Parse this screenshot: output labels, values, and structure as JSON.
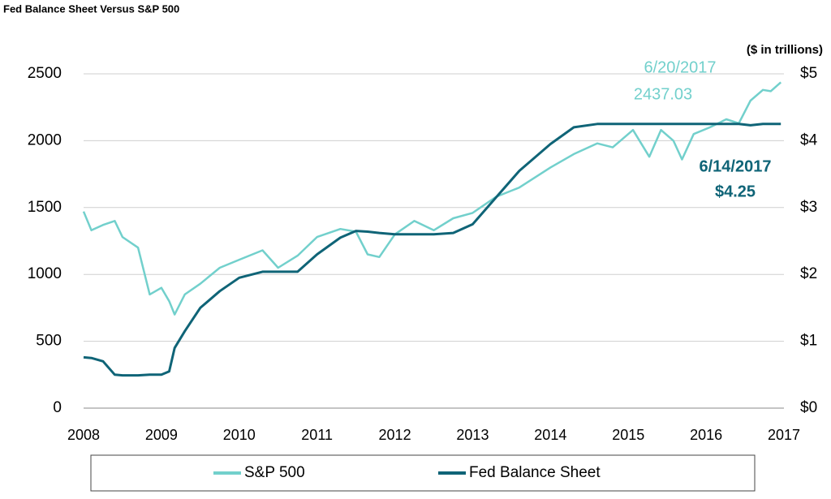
{
  "chart_data": {
    "type": "line",
    "title": "Fed Balance Sheet Versus S&P 500",
    "y2_label": "($ in trillions)",
    "x": [
      2008.0,
      2008.1,
      2008.25,
      2008.4,
      2008.5,
      2008.7,
      2008.85,
      2009.0,
      2009.1,
      2009.17,
      2009.3,
      2009.5,
      2009.75,
      2010.0,
      2010.3,
      2010.5,
      2010.75,
      2011.0,
      2011.3,
      2011.5,
      2011.65,
      2011.8,
      2012.0,
      2012.25,
      2012.5,
      2012.75,
      2013.0,
      2013.3,
      2013.6,
      2014.0,
      2014.3,
      2014.6,
      2014.8,
      2015.06,
      2015.27,
      2015.42,
      2015.58,
      2015.69,
      2015.84,
      2016.05,
      2016.26,
      2016.42,
      2016.57,
      2016.73,
      2016.83,
      2016.96
    ],
    "series": [
      {
        "name": "S&P 500",
        "color": "#72d0cc",
        "values": [
          1470,
          1330,
          1370,
          1400,
          1280,
          1200,
          850,
          900,
          800,
          700,
          850,
          930,
          1050,
          1110,
          1180,
          1050,
          1140,
          1280,
          1340,
          1320,
          1150,
          1130,
          1300,
          1400,
          1330,
          1420,
          1460,
          1580,
          1650,
          1800,
          1900,
          1980,
          1950,
          2080,
          1880,
          2080,
          2000,
          1860,
          2050,
          2100,
          2160,
          2130,
          2300,
          2380,
          2370,
          2437.03
        ]
      },
      {
        "name": "Fed Balance Sheet",
        "color": "#0f6477",
        "axis": "y2",
        "values": [
          0.76,
          0.75,
          0.7,
          0.5,
          0.49,
          0.49,
          0.5,
          0.5,
          0.55,
          0.9,
          1.15,
          1.5,
          1.75,
          1.95,
          2.04,
          2.04,
          2.04,
          2.3,
          2.55,
          2.65,
          2.64,
          2.62,
          2.6,
          2.6,
          2.6,
          2.62,
          2.75,
          3.15,
          3.55,
          3.95,
          4.2,
          4.25,
          4.25,
          4.25,
          4.25,
          4.25,
          4.25,
          4.25,
          4.25,
          4.25,
          4.25,
          4.25,
          4.23,
          4.25,
          4.25,
          4.25
        ]
      }
    ],
    "annotations": [
      {
        "date": "6/20/2017",
        "value": "2437.03",
        "color": "#72d0cc"
      },
      {
        "date": "6/14/2017",
        "value": "$4.25",
        "color": "#0f6477"
      }
    ],
    "xlim": [
      2008,
      2017
    ],
    "xticks": [
      2008,
      2009,
      2010,
      2011,
      2012,
      2013,
      2014,
      2015,
      2016,
      2017
    ],
    "ylim": [
      0,
      2500
    ],
    "yticks": [
      0,
      500,
      1000,
      1500,
      2000,
      2500
    ],
    "y2lim": [
      0,
      5
    ],
    "y2ticks": [
      {
        "value": 0,
        "label": "$0"
      },
      {
        "value": 1,
        "label": "$1"
      },
      {
        "value": 2,
        "label": "$2"
      },
      {
        "value": 3,
        "label": "$3"
      },
      {
        "value": 4,
        "label": "$4"
      },
      {
        "value": 5,
        "label": "$5"
      }
    ],
    "grid": true
  }
}
